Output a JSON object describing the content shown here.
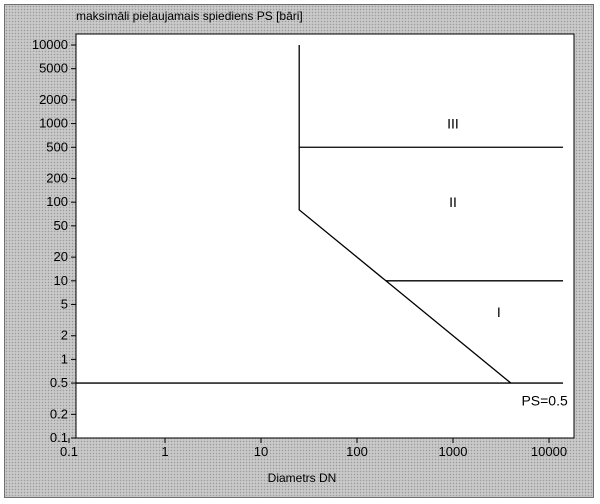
{
  "chart_data": {
    "type": "line",
    "title": "maksimāli pieļaujamais spiediens PS [bāri]",
    "xlabel": "Diametrs DN",
    "ylabel": "",
    "x_scale": "log",
    "y_scale": "log",
    "xlim": [
      0.1,
      15000
    ],
    "ylim": [
      0.1,
      12000
    ],
    "grid": false,
    "x_ticks": [
      0.1,
      1,
      10,
      100,
      1000,
      10000
    ],
    "x_tick_labels": [
      "0.1",
      "1",
      "10",
      "100",
      "1000",
      "10000"
    ],
    "y_ticks": [
      10000,
      5000,
      2000,
      1000,
      500,
      200,
      100,
      50,
      20,
      10,
      5,
      2,
      1,
      0.5,
      0.2,
      0.1
    ],
    "y_tick_labels": [
      "10000",
      "5000",
      "2000",
      "1000",
      "500",
      "200",
      "100",
      "50",
      "20",
      "10",
      "5",
      "2",
      "1",
      "0.5",
      "0.2",
      "0.1"
    ],
    "series": [
      {
        "points": [
          [
            25,
            10000
          ],
          [
            25,
            80
          ],
          [
            200,
            10
          ],
          [
            4000,
            0.5
          ]
        ]
      },
      {
        "points": [
          [
            25,
            500
          ],
          [
            14000,
            500
          ]
        ]
      },
      {
        "points": [
          [
            200,
            10
          ],
          [
            14000,
            10
          ]
        ]
      },
      {
        "points": [
          [
            0.1,
            0.5
          ],
          [
            14000,
            0.5
          ]
        ]
      }
    ],
    "annotations": [
      {
        "text": "III",
        "x": 1000,
        "y": 1000
      },
      {
        "text": "II",
        "x": 1000,
        "y": 100
      },
      {
        "text": "I",
        "x": 3000,
        "y": 4
      },
      {
        "text": "PS=0.5",
        "x": 9000,
        "y": 0.3
      }
    ]
  }
}
